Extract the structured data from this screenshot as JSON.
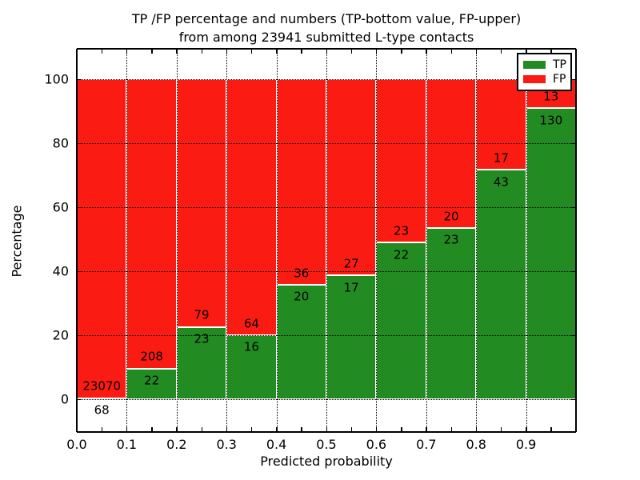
{
  "figure": {
    "title_line1": "TP /FP percentage and numbers (TP-bottom value, FP-upper)",
    "title_line2": "from among 23941 submitted L-type contacts"
  },
  "chart_data": {
    "type": "bar",
    "stacked": true,
    "normalized_to": 100,
    "title": "TP /FP percentage and numbers (TP-bottom value, FP-upper)\nfrom among 23941 submitted L-type contacts",
    "xlabel": "Predicted probability",
    "ylabel": "Percentage",
    "total_contacts": 23941,
    "xlim": [
      0.0,
      1.0
    ],
    "ylim": [
      -10.5,
      109.5
    ],
    "bin_width": 0.1,
    "x_tick_labels": [
      "0.0",
      "0.1",
      "0.2",
      "0.3",
      "0.4",
      "0.5",
      "0.6",
      "0.7",
      "0.8",
      "0.9"
    ],
    "x_minor_tick_step": 0.05,
    "y_ticks": [
      0,
      20,
      40,
      60,
      80,
      100
    ],
    "bins": [
      "0.0-0.1",
      "0.1-0.2",
      "0.2-0.3",
      "0.3-0.4",
      "0.4-0.5",
      "0.5-0.6",
      "0.6-0.7",
      "0.7-0.8",
      "0.8-0.9",
      "0.9-1.0"
    ],
    "series": [
      {
        "name": "TP",
        "color": "#228b22",
        "counts": [
          68,
          22,
          23,
          16,
          20,
          17,
          22,
          23,
          43,
          130
        ]
      },
      {
        "name": "FP",
        "color": "#fa1c12",
        "counts": [
          23070,
          208,
          79,
          64,
          36,
          27,
          23,
          20,
          17,
          13
        ]
      }
    ],
    "tp_percent_per_bin": [
      0.29,
      9.57,
      22.55,
      20.0,
      35.71,
      38.64,
      48.89,
      53.49,
      71.67,
      90.91
    ],
    "legend": {
      "position": "upper right",
      "entries": [
        "TP",
        "FP"
      ]
    },
    "grid": {
      "visible": true,
      "style": "dotted",
      "color": "#000000"
    },
    "bar_edge_color": "#ffffff",
    "background": "#ffffff"
  }
}
